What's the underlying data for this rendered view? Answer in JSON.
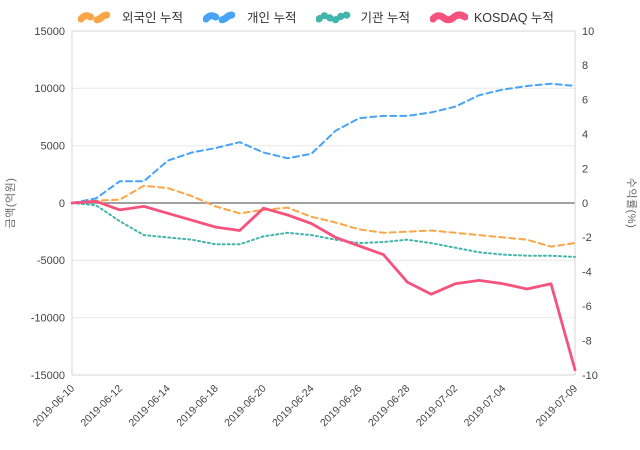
{
  "legend_note": "cumulative net buying by investor type vs KOSDAQ return",
  "chart_data": {
    "type": "line",
    "title": "",
    "x_dates": [
      "2019-06-10",
      "2019-06-11",
      "2019-06-12",
      "2019-06-13",
      "2019-06-14",
      "2019-06-17",
      "2019-06-18",
      "2019-06-19",
      "2019-06-20",
      "2019-06-21",
      "2019-06-24",
      "2019-06-25",
      "2019-06-26",
      "2019-06-27",
      "2019-06-28",
      "2019-07-01",
      "2019-07-02",
      "2019-07-03",
      "2019-07-04",
      "2019-07-05",
      "2019-07-08",
      "2019-07-09"
    ],
    "x_tick_indices": [
      0,
      2,
      4,
      6,
      8,
      10,
      12,
      14,
      16,
      18,
      21
    ],
    "x_tick_labels": [
      "2019-06-10",
      "2019-06-12",
      "2019-06-14",
      "2019-06-18",
      "2019-06-20",
      "2019-06-24",
      "2019-06-26",
      "2019-06-28",
      "2019-07-02",
      "2019-07-04",
      "2019-07-09"
    ],
    "left_axis": {
      "label": "금액(억원)",
      "min": -15000,
      "max": 15000,
      "ticks": [
        15000,
        10000,
        5000,
        0,
        -5000,
        -10000,
        -15000
      ]
    },
    "right_axis": {
      "label": "수익률(%)",
      "min": -10,
      "max": 10,
      "ticks": [
        10,
        8,
        6,
        4,
        2,
        0,
        -2,
        -4,
        -6,
        -8,
        -10
      ]
    },
    "grid": {
      "horizontal": true,
      "zero_line_color": "#808080",
      "grid_color": "#e8e8e8",
      "border_color": "#d6d6d6"
    },
    "legend_position": "top",
    "series": [
      {
        "name": "외국인 누적",
        "axis": "left",
        "color": "#f9a646",
        "style": "dashed",
        "values": [
          0,
          200,
          300,
          1500,
          1300,
          600,
          -300,
          -900,
          -600,
          -400,
          -1200,
          -1700,
          -2300,
          -2600,
          -2500,
          -2400,
          -2600,
          -2800,
          -3000,
          -3200,
          -3800,
          -3500
        ]
      },
      {
        "name": "개인 누적",
        "axis": "left",
        "color": "#46a3f7",
        "style": "dashed",
        "values": [
          0,
          400,
          1900,
          1900,
          3700,
          4400,
          4800,
          5300,
          4400,
          3900,
          4300,
          6300,
          7400,
          7600,
          7600,
          7900,
          8400,
          9400,
          9900,
          10200,
          10400,
          10200
        ]
      },
      {
        "name": "기관 누적",
        "axis": "left",
        "color": "#41b5aa",
        "style": "dotted",
        "values": [
          0,
          -200,
          -1600,
          -2800,
          -3000,
          -3200,
          -3600,
          -3600,
          -2900,
          -2600,
          -2800,
          -3200,
          -3500,
          -3400,
          -3200,
          -3500,
          -3900,
          -4300,
          -4500,
          -4600,
          -4600,
          -4700
        ]
      },
      {
        "name": "KOSDAQ 누적",
        "axis": "right",
        "color": "#f5537e",
        "style": "solid",
        "values": [
          0,
          0.1,
          -0.4,
          -0.2,
          -0.6,
          -1.0,
          -1.4,
          -1.6,
          -0.3,
          -0.7,
          -1.2,
          -2.0,
          -2.5,
          -3.0,
          -4.6,
          -5.3,
          -4.7,
          -4.5,
          -4.7,
          -5.0,
          -4.7,
          -9.7
        ]
      }
    ]
  }
}
